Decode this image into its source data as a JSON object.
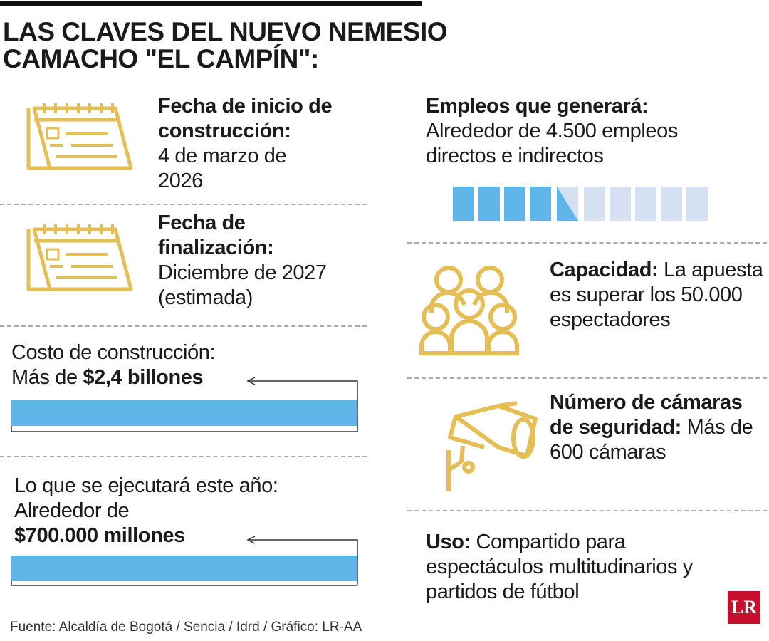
{
  "title_lines": [
    "LAS CLAVES DEL NUEVO NEMESIO",
    "CAMACHO \"EL CAMPÍN\":"
  ],
  "start": {
    "label": "Fecha de inicio de construcción:",
    "text": "4 de marzo de 2026"
  },
  "end": {
    "label": "Fecha de finalización:",
    "text": "Diciembre de 2027 (estimada)"
  },
  "cost": {
    "label": "Costo de construcción:",
    "prefix": "Más de",
    "amount": "$2,4 billones"
  },
  "this_year": {
    "label": "Lo que se ejecutará este año:",
    "prefix": "Alrededor de",
    "amount": "$700.000 millones"
  },
  "jobs": {
    "label": "Empleos que generará:",
    "text": "Alrededor de 4.500 empleos directos e indirectos"
  },
  "capacity": {
    "label": "Capacidad:",
    "text": "La apuesta es superar los 50.000 espectadores"
  },
  "cameras": {
    "label": "Número de cámaras de seguridad:",
    "text": "Más de 600 cámaras"
  },
  "use": {
    "label": "Uso:",
    "text": "Compartido para espectáculos multitudinarios y partidos de fútbol"
  },
  "source": "Fuente: Alcaldía de Bogotá / Sencia / Idrd / Gráfico: LR-AA",
  "logo": "LR"
}
